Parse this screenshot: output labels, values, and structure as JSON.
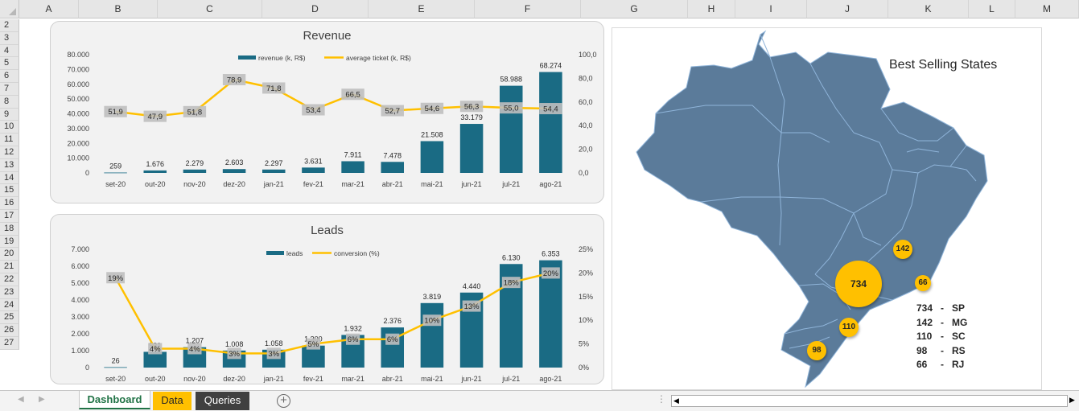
{
  "columns": [
    "A",
    "B",
    "C",
    "D",
    "E",
    "F",
    "G",
    "H",
    "I",
    "J",
    "K",
    "L",
    "M"
  ],
  "rows": [
    "2",
    "3",
    "4",
    "5",
    "6",
    "7",
    "8",
    "9",
    "10",
    "11",
    "12",
    "13",
    "14",
    "15",
    "16",
    "17",
    "18",
    "19",
    "20",
    "21",
    "22",
    "23",
    "24",
    "25",
    "26",
    "27"
  ],
  "colors": {
    "bar": "#1a6b84",
    "line": "#ffc000",
    "label_bg": "#bfbfbf",
    "map": "#5b7b9a",
    "bubble": "#ffc000"
  },
  "revenue_chart": {
    "chart_data": {
      "type": "bar",
      "title": "Revenue",
      "categories": [
        "set-20",
        "out-20",
        "nov-20",
        "dez-20",
        "jan-21",
        "fev-21",
        "mar-21",
        "abr-21",
        "mai-21",
        "jun-21",
        "jul-21",
        "ago-21"
      ],
      "series": [
        {
          "name": "revenue (k, R$)",
          "type": "bar",
          "axis": "left",
          "values": [
            259,
            1676,
            2279,
            2603,
            2297,
            3631,
            7911,
            7478,
            21508,
            33179,
            58988,
            68274
          ],
          "labels": [
            "259",
            "1.676",
            "2.279",
            "2.603",
            "2.297",
            "3.631",
            "7.911",
            "7.478",
            "21.508",
            "33.179",
            "58.988",
            "68.274"
          ]
        },
        {
          "name": "average ticket (k, R$)",
          "type": "line",
          "axis": "right",
          "values": [
            51.9,
            47.9,
            51.8,
            78.9,
            71.8,
            53.4,
            66.5,
            52.7,
            54.6,
            56.3,
            55.0,
            54.4
          ],
          "labels": [
            "51,9",
            "47,9",
            "51,8",
            "78,9",
            "71,8",
            "53,4",
            "66,5",
            "52,7",
            "54,6",
            "56,3",
            "55,0",
            "54,4"
          ]
        }
      ],
      "ylim": [
        0,
        80000
      ],
      "y2lim": [
        0,
        100
      ],
      "yticks": [
        "0",
        "10.000",
        "20.000",
        "30.000",
        "40.000",
        "50.000",
        "60.000",
        "70.000",
        "80.000"
      ],
      "y2ticks": [
        "0,0",
        "20,0",
        "40,0",
        "60,0",
        "80,0",
        "100,0"
      ],
      "legend": "top",
      "grid": false
    }
  },
  "leads_chart": {
    "chart_data": {
      "type": "bar",
      "title": "Leads",
      "categories": [
        "set-20",
        "out-20",
        "nov-20",
        "dez-20",
        "jan-21",
        "fev-21",
        "mar-21",
        "abr-21",
        "mai-21",
        "jun-21",
        "jul-21",
        "ago-21"
      ],
      "series": [
        {
          "name": "leads",
          "type": "bar",
          "axis": "left",
          "values": [
            26,
            931,
            1207,
            1008,
            1058,
            1300,
            1932,
            2376,
            3819,
            4440,
            6130,
            6353
          ],
          "labels": [
            "26",
            "931",
            "1.207",
            "1.008",
            "1.058",
            "1.300",
            "1.932",
            "2.376",
            "3.819",
            "4.440",
            "6.130",
            "6.353"
          ]
        },
        {
          "name": "conversion (%)",
          "type": "line",
          "axis": "right",
          "values": [
            19,
            4,
            4,
            3,
            3,
            5,
            6,
            6,
            10,
            13,
            18,
            20
          ],
          "labels": [
            "19%",
            "4%",
            "4%",
            "3%",
            "3%",
            "5%",
            "6%",
            "6%",
            "10%",
            "13%",
            "18%",
            "20%"
          ]
        }
      ],
      "ylim": [
        0,
        7000
      ],
      "y2lim": [
        0,
        25
      ],
      "yticks": [
        "0",
        "1.000",
        "2.000",
        "3.000",
        "4.000",
        "5.000",
        "6.000",
        "7.000"
      ],
      "y2ticks": [
        "0%",
        "5%",
        "10%",
        "15%",
        "20%",
        "25%"
      ],
      "legend": "top",
      "grid": false
    }
  },
  "map": {
    "title": "Best Selling States",
    "bubbles": [
      {
        "state": "SP",
        "value": "734"
      },
      {
        "state": "MG",
        "value": "142"
      },
      {
        "state": "SC",
        "value": "110"
      },
      {
        "state": "RS",
        "value": "98"
      },
      {
        "state": "RJ",
        "value": "66"
      }
    ],
    "legend": [
      {
        "value": "734",
        "sep": "-",
        "state": "SP"
      },
      {
        "value": "142",
        "sep": "-",
        "state": "MG"
      },
      {
        "value": "110",
        "sep": "-",
        "state": "SC"
      },
      {
        "value": "98",
        "sep": "-",
        "state": "RS"
      },
      {
        "value": "66",
        "sep": "-",
        "state": "RJ"
      }
    ]
  },
  "tabs": [
    {
      "label": "Dashboard",
      "active": true
    },
    {
      "label": "Data",
      "color": "#ffc000"
    },
    {
      "label": "Queries",
      "color": "#404040"
    }
  ],
  "icons": {
    "add_sheet": "plus-circle-icon",
    "scroll_left": "triangle-left-icon",
    "scroll_right": "triangle-right-icon"
  }
}
